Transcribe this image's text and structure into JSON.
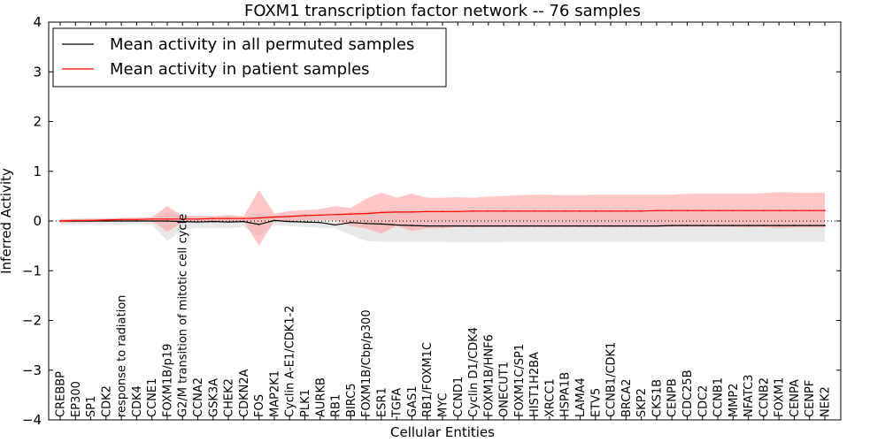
{
  "chart_data": {
    "type": "line",
    "title": "FOXM1 transcription factor network -- 76 samples",
    "xlabel": "Cellular Entities",
    "ylabel": "Inferred Activity",
    "ylim": [
      -4,
      4
    ],
    "yticks": [
      -4,
      -3,
      -2,
      -1,
      0,
      1,
      2,
      3,
      4
    ],
    "ytick_labels": [
      "−4",
      "−3",
      "−2",
      "−1",
      "0",
      "1",
      "2",
      "3",
      "4"
    ],
    "reference_line": 0,
    "legend_position": "top-left",
    "categories": [
      "CREBBP",
      "EP300",
      "SP1",
      "CDK2",
      "response to radiation",
      "CDK4",
      "CCNE1",
      "FOXM1B/p19",
      "G2/M transition of mitotic cell cycle",
      "CCNA2",
      "GSK3A",
      "CHEK2",
      "CDKN2A",
      "FOS",
      "MAP2K1",
      "Cyclin A-E1/CDK1-2",
      "PLK1",
      "AURKB",
      "RB1",
      "BIRC5",
      "FOXM1B/Cbp/p300",
      "ESR1",
      "TGFA",
      "GAS1",
      "RB1/FOXM1C",
      "MYC",
      "CCND1",
      "Cyclin D1/CDK4",
      "FOXM1B/HNF6",
      "ONECUT1",
      "FOXM1C/SP1",
      "HIST1H2BA",
      "XRCC1",
      "HSPA1B",
      "LAMA4",
      "ETV5",
      "CCNB1/CDK1",
      "BRCA2",
      "SKP2",
      "CKS1B",
      "CENPB",
      "CDC25B",
      "CDC2",
      "CCNB1",
      "MMP2",
      "NFATC3",
      "CCNB2",
      "FOXM1",
      "CENPA",
      "CENPF",
      "NEK2"
    ],
    "series": [
      {
        "name": "Mean activity in all permuted samples",
        "color": "#000000",
        "band_color": "#d9d9d9",
        "values": [
          0,
          0,
          0,
          0,
          0,
          0,
          0,
          0,
          -0.01,
          -0.02,
          -0.01,
          -0.02,
          -0.01,
          -0.07,
          0.01,
          -0.01,
          -0.02,
          -0.03,
          -0.08,
          -0.03,
          -0.05,
          -0.06,
          -0.08,
          -0.09,
          -0.1,
          -0.1,
          -0.1,
          -0.1,
          -0.1,
          -0.1,
          -0.1,
          -0.1,
          -0.1,
          -0.1,
          -0.1,
          -0.1,
          -0.1,
          -0.1,
          -0.1,
          -0.1,
          -0.09,
          -0.09,
          -0.09,
          -0.09,
          -0.09,
          -0.09,
          -0.09,
          -0.09,
          -0.09,
          -0.09,
          -0.09
        ],
        "lower": [
          -0.08,
          -0.08,
          -0.08,
          -0.08,
          -0.08,
          -0.06,
          -0.08,
          -0.4,
          -0.18,
          -0.14,
          -0.14,
          -0.14,
          -0.12,
          -0.3,
          -0.08,
          -0.1,
          -0.12,
          -0.14,
          -0.15,
          -0.28,
          -0.4,
          -0.42,
          -0.42,
          -0.42,
          -0.42,
          -0.42,
          -0.43,
          -0.42,
          -0.43,
          -0.42,
          -0.42,
          -0.42,
          -0.42,
          -0.42,
          -0.42,
          -0.42,
          -0.42,
          -0.42,
          -0.42,
          -0.42,
          -0.42,
          -0.42,
          -0.42,
          -0.42,
          -0.42,
          -0.42,
          -0.42,
          -0.42,
          -0.42,
          -0.42,
          -0.42
        ],
        "upper": [
          0.05,
          0.05,
          0.05,
          0.05,
          0.06,
          0.05,
          0.05,
          0.18,
          0.1,
          0.1,
          0.08,
          0.1,
          0.08,
          0.15,
          0.1,
          0.12,
          0.14,
          0.12,
          0.1,
          0.18,
          0.2,
          0.22,
          0.22,
          0.22,
          0.22,
          0.22,
          0.23,
          0.23,
          0.23,
          0.23,
          0.23,
          0.23,
          0.23,
          0.23,
          0.23,
          0.23,
          0.23,
          0.23,
          0.23,
          0.23,
          0.23,
          0.23,
          0.23,
          0.23,
          0.23,
          0.23,
          0.23,
          0.23,
          0.23,
          0.23,
          0.23
        ]
      },
      {
        "name": "Mean activity in patient samples",
        "color": "#ff0000",
        "band_color": "#ff9999",
        "values": [
          0,
          0.01,
          0.01,
          0.02,
          0.03,
          0.03,
          0.04,
          0.04,
          0.04,
          0.04,
          0.05,
          0.05,
          0.05,
          0.06,
          0.08,
          0.09,
          0.11,
          0.12,
          0.13,
          0.14,
          0.15,
          0.17,
          0.18,
          0.18,
          0.19,
          0.19,
          0.19,
          0.2,
          0.2,
          0.2,
          0.2,
          0.2,
          0.2,
          0.2,
          0.2,
          0.2,
          0.2,
          0.2,
          0.2,
          0.21,
          0.21,
          0.21,
          0.21,
          0.21,
          0.21,
          0.21,
          0.21,
          0.21,
          0.21,
          0.21,
          0.21
        ],
        "lower": [
          -0.03,
          -0.03,
          -0.02,
          -0.01,
          0,
          0,
          0,
          -0.22,
          -0.02,
          0,
          0,
          0,
          0,
          -0.5,
          0,
          0,
          0.02,
          0.02,
          0.02,
          -0.1,
          -0.15,
          -0.25,
          -0.1,
          -0.2,
          -0.15,
          -0.15,
          -0.12,
          -0.13,
          -0.12,
          -0.12,
          -0.12,
          -0.12,
          -0.12,
          -0.12,
          -0.12,
          -0.12,
          -0.12,
          -0.12,
          -0.12,
          -0.12,
          -0.12,
          -0.12,
          -0.12,
          -0.12,
          -0.12,
          -0.13,
          -0.12,
          -0.15,
          -0.13,
          -0.13,
          -0.13
        ],
        "upper": [
          0.03,
          0.04,
          0.05,
          0.05,
          0.06,
          0.07,
          0.08,
          0.3,
          0.1,
          0.1,
          0.1,
          0.12,
          0.1,
          0.62,
          0.15,
          0.2,
          0.22,
          0.24,
          0.3,
          0.26,
          0.45,
          0.57,
          0.47,
          0.55,
          0.47,
          0.47,
          0.48,
          0.47,
          0.49,
          0.5,
          0.52,
          0.53,
          0.53,
          0.52,
          0.52,
          0.53,
          0.53,
          0.53,
          0.53,
          0.53,
          0.53,
          0.55,
          0.55,
          0.55,
          0.55,
          0.55,
          0.56,
          0.58,
          0.57,
          0.57,
          0.57
        ]
      }
    ]
  }
}
